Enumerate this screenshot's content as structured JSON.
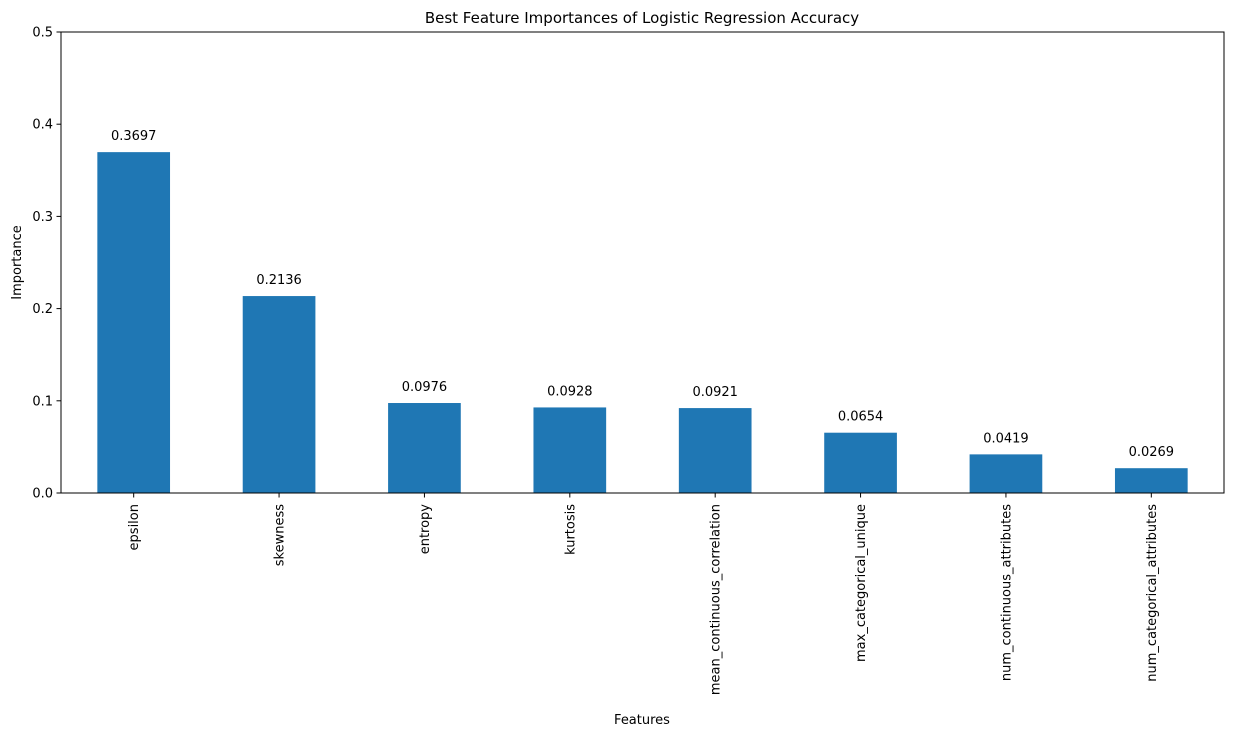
{
  "chart_data": {
    "type": "bar",
    "title": "Best Feature Importances of Logistic Regression Accuracy",
    "xlabel": "Features",
    "ylabel": "Importance",
    "categories": [
      "epsilon",
      "skewness",
      "entropy",
      "kurtosis",
      "mean_continuous_correlation",
      "max_categorical_unique",
      "num_continuous_attributes",
      "num_categorical_attributes"
    ],
    "values": [
      0.3697,
      0.2136,
      0.0976,
      0.0928,
      0.0921,
      0.0654,
      0.0419,
      0.0269
    ],
    "data_labels": [
      "0.3697",
      "0.2136",
      "0.0976",
      "0.0928",
      "0.0921",
      "0.0654",
      "0.0419",
      "0.0269"
    ],
    "ylim": [
      0,
      0.5
    ],
    "yticks": [
      0.0,
      0.1,
      0.2,
      0.3,
      0.4,
      0.5
    ],
    "ytick_labels": [
      "0.0",
      "0.1",
      "0.2",
      "0.3",
      "0.4",
      "0.5"
    ],
    "grid": false,
    "legend": "none",
    "bar_color": "#1f77b4"
  }
}
